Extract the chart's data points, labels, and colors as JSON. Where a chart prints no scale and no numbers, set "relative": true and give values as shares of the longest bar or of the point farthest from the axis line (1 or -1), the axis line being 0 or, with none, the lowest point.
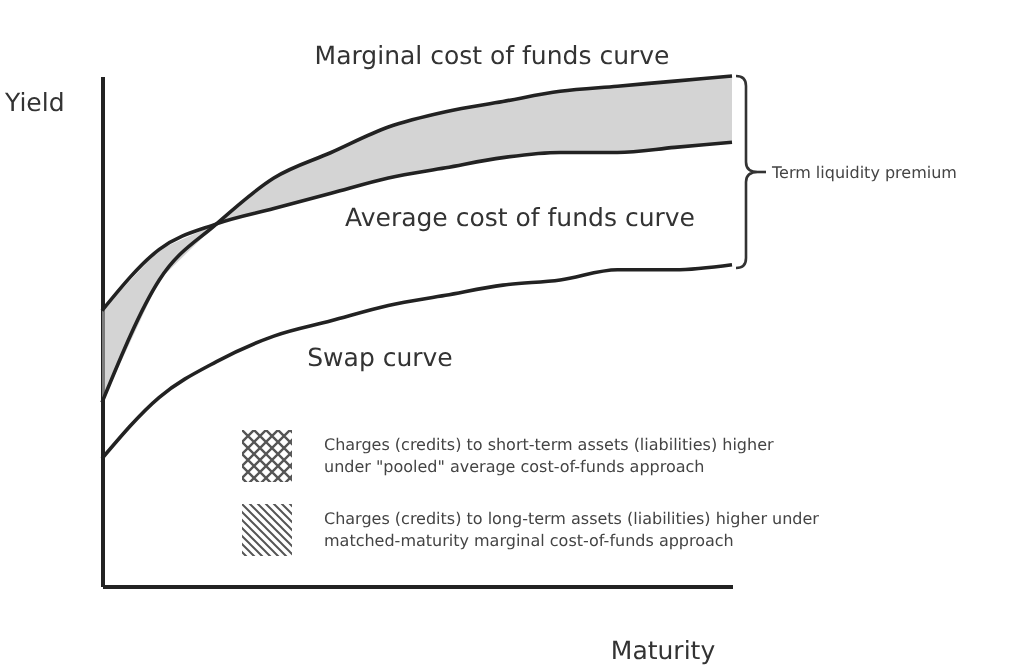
{
  "chart_data": {
    "type": "line",
    "relative": true,
    "xlabel": "Maturity",
    "ylabel": "Yield",
    "categories": [
      null,
      null,
      null,
      null,
      null,
      null,
      null,
      null,
      null,
      null,
      null,
      null
    ],
    "series": [
      {
        "name": "Marginal cost of funds curve",
        "color": "#222222",
        "values": [
          0.36,
          0.6,
          0.71,
          0.8,
          0.85,
          0.9,
          0.93,
          0.95,
          0.97,
          0.98,
          0.99,
          1
        ],
        "lower": [
          0.36,
          0.6,
          0.71,
          0.74,
          0.77,
          0.8,
          0.82,
          0.84,
          0.85,
          0.85,
          0.86,
          0.87
        ],
        "upper": [
          0.54,
          0.66,
          0.71,
          0.8,
          0.85,
          0.9,
          0.93,
          0.95,
          0.97,
          0.98,
          0.99,
          1
        ]
      },
      {
        "name": "Average cost of funds curve",
        "color": "#222222",
        "values": [
          0.54,
          0.66,
          0.71,
          0.74,
          0.77,
          0.8,
          0.82,
          0.84,
          0.85,
          0.85,
          0.86,
          0.87
        ]
      },
      {
        "name": "Swap curve",
        "color": "#222222",
        "values": [
          0.25,
          0.37,
          0.44,
          0.49,
          0.52,
          0.55,
          0.57,
          0.59,
          0.6,
          0.62,
          0.62,
          0.63
        ]
      }
    ],
    "annotations": [
      "Term liquidity premium",
      "Charges (credits) to short-term assets (liabilities) higher under \"pooled\" average cost-of-funds approach",
      "Charges (credits) to long-term assets (liabilities) higher under matched-maturity marginal cost-of-funds approach"
    ],
    "grid": false,
    "legend": false
  }
}
